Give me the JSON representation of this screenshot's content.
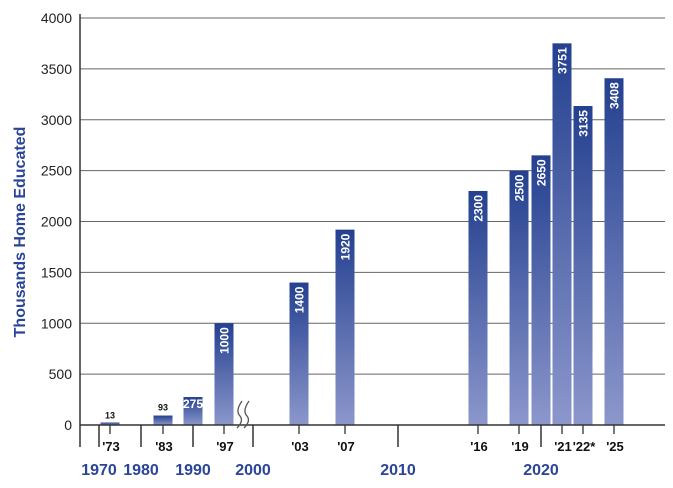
{
  "chart_data": {
    "type": "bar",
    "ylabel": "Thousands Home Educated",
    "ylim": [
      0,
      4000
    ],
    "yticks": [
      0,
      500,
      1000,
      1500,
      2000,
      2500,
      3000,
      3500,
      4000
    ],
    "grid": true,
    "colors": {
      "bar_top": "#24408f",
      "bar_bottom": "#8c97cc",
      "decade_text": "#2a4597",
      "grid": "#666666"
    },
    "bars": [
      {
        "year": 1973,
        "label": "'73",
        "value": 13,
        "value_label": "13"
      },
      {
        "year": 1983,
        "label": "'83",
        "value": 93,
        "value_label": "93"
      },
      {
        "year": 1990,
        "label": "",
        "value": 275,
        "value_label": "275"
      },
      {
        "year": 1997,
        "label": "'97",
        "value": 1000,
        "value_label": "1000"
      },
      {
        "year": 2003,
        "label": "'03",
        "value": 1400,
        "value_label": "1400"
      },
      {
        "year": 2007,
        "label": "'07",
        "value": 1920,
        "value_label": "1920"
      },
      {
        "year": 2016,
        "label": "'16",
        "value": 2300,
        "value_label": "2300"
      },
      {
        "year": 2019,
        "label": "'19",
        "value": 2500,
        "value_label": "2500"
      },
      {
        "year": 2020,
        "label": "",
        "value": 2650,
        "value_label": "2650"
      },
      {
        "year": 2021,
        "label": "'21",
        "value": 3751,
        "value_label": "3751"
      },
      {
        "year": 2022,
        "label": "'22*",
        "value": 3135,
        "value_label": "3135"
      },
      {
        "year": 2025,
        "label": "'25",
        "value": 3408,
        "value_label": "3408"
      }
    ],
    "decades": [
      {
        "year": 1970,
        "label": "1970"
      },
      {
        "year": 1980,
        "label": "1980"
      },
      {
        "year": 1990,
        "label": "1990"
      },
      {
        "year": 2000,
        "label": "2000"
      },
      {
        "year": 2010,
        "label": "2010"
      },
      {
        "year": 2020,
        "label": "2020"
      }
    ],
    "axis_break": "between 1997 and 2000"
  }
}
